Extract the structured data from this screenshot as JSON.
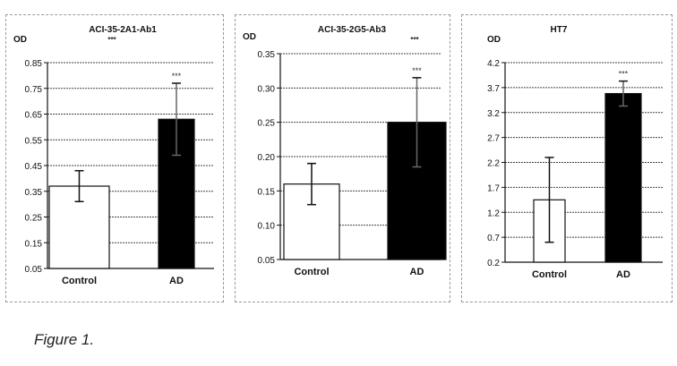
{
  "figure": {
    "caption": "Figure 1."
  },
  "chart_data": [
    {
      "type": "bar",
      "title": "ACI-35-2A1-Ab1",
      "title_mark": "***",
      "ylabel": "OD",
      "categories": [
        "Control",
        "AD"
      ],
      "values": [
        0.37,
        0.63
      ],
      "errors": [
        0.06,
        0.14
      ],
      "significance": [
        "",
        "***"
      ],
      "ylim": [
        0.05,
        0.85
      ],
      "yticks": [
        "0.05",
        "0.15",
        "0.25",
        "0.35",
        "0.45",
        "0.55",
        "0.65",
        "0.75",
        "0.85"
      ],
      "grid": true,
      "legend": "none",
      "colors": {
        "Control": "#ffffff",
        "AD": "#000000"
      }
    },
    {
      "type": "bar",
      "title": "ACI-35-2G5-Ab3",
      "title_mark": "***",
      "ylabel": "OD",
      "categories": [
        "Control",
        "AD"
      ],
      "values": [
        0.16,
        0.25
      ],
      "errors": [
        0.03,
        0.065
      ],
      "significance": [
        "",
        "***"
      ],
      "ylim": [
        0.05,
        0.35
      ],
      "yticks": [
        "0.05",
        "0.10",
        "0.15",
        "0.20",
        "0.25",
        "0.30",
        "0.35"
      ],
      "grid": true,
      "legend": "none",
      "colors": {
        "Control": "#ffffff",
        "AD": "#000000"
      }
    },
    {
      "type": "bar",
      "title": "HT7",
      "title_mark": "",
      "ylabel": "OD",
      "categories": [
        "Control",
        "AD"
      ],
      "values": [
        1.45,
        3.58
      ],
      "errors": [
        0.85,
        0.25
      ],
      "significance": [
        "",
        "***"
      ],
      "ylim": [
        0.2,
        4.2
      ],
      "yticks": [
        "0.2",
        "0.7",
        "1.2",
        "1.7",
        "2.2",
        "2.7",
        "3.2",
        "3.7",
        "4.2"
      ],
      "grid": true,
      "legend": "none",
      "colors": {
        "Control": "#ffffff",
        "AD": "#000000"
      }
    }
  ]
}
